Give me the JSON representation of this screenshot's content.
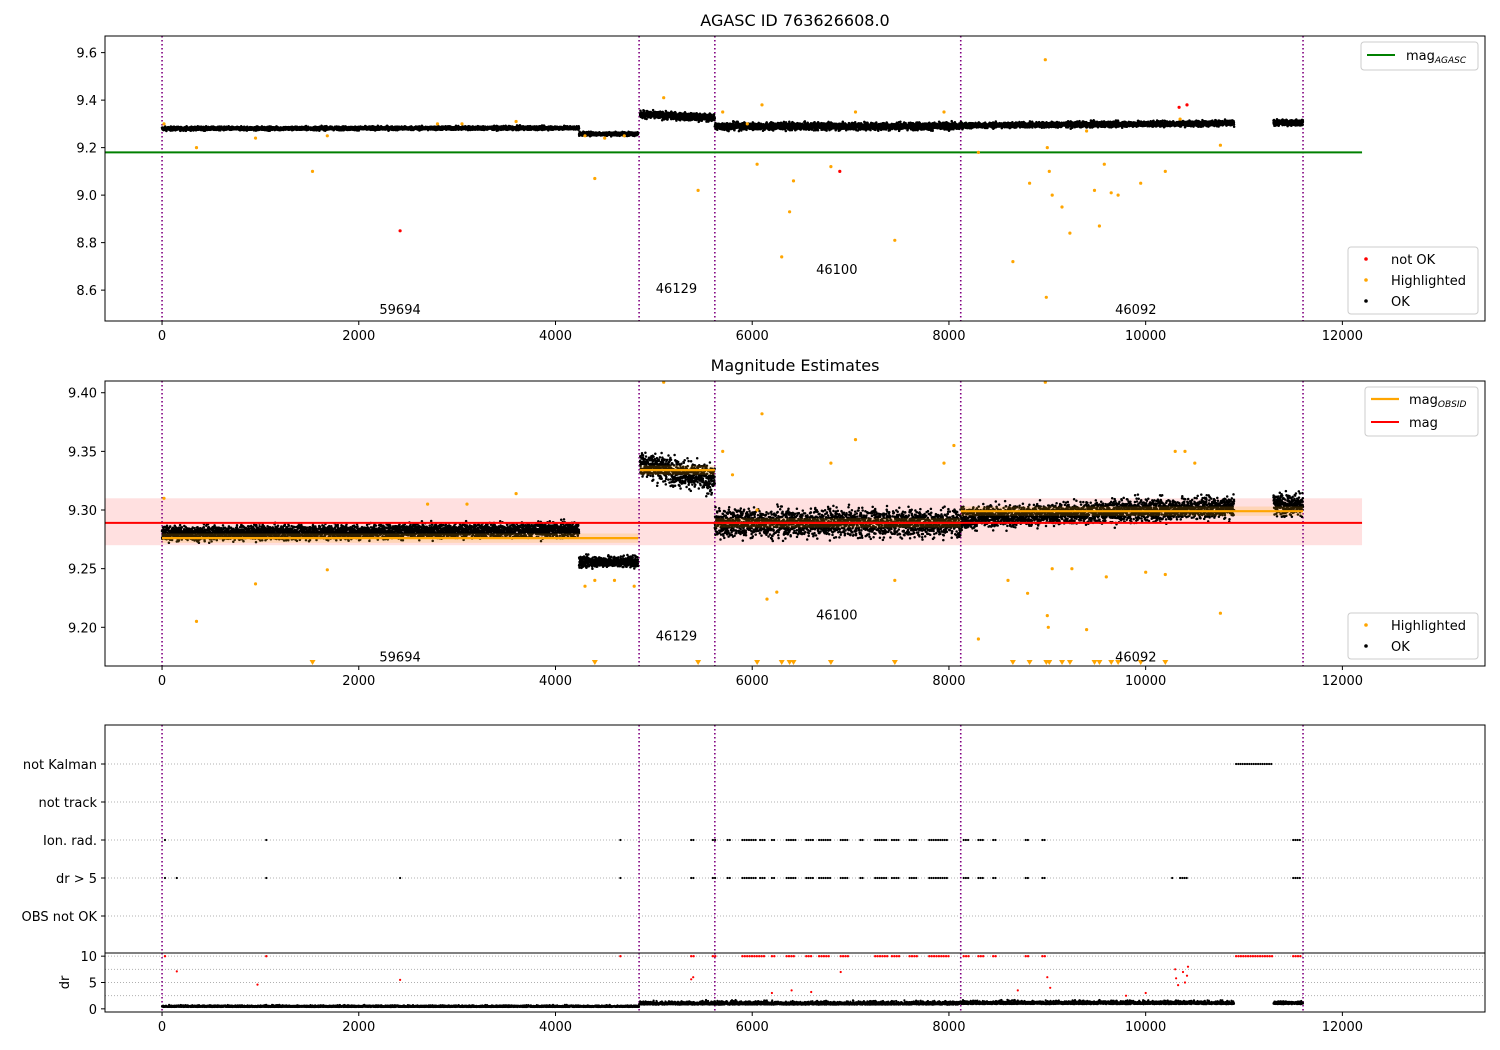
{
  "figure": {
    "title_top": "AGASC ID 763626608.0",
    "title_middle": "Magnitude Estimates"
  },
  "colors": {
    "ok": "#000000",
    "highlighted": "#ffa500",
    "not_ok": "#ff0000",
    "agasc_line": "#008000",
    "mag_line": "#ff0000",
    "mag_obsid": "#ffa500",
    "obs_boundary": "#800080",
    "band": "#ffcccc"
  },
  "chart_data": [
    {
      "type": "scatter",
      "panel": "top",
      "title": "AGASC ID 763626608.0",
      "xlim": [
        -580,
        13450
      ],
      "ylim": [
        8.47,
        9.67
      ],
      "x_ticks": [
        0,
        2000,
        4000,
        6000,
        8000,
        10000,
        12000
      ],
      "y_ticks": [
        8.6,
        8.8,
        9.0,
        9.2,
        9.4,
        9.6
      ],
      "hlines": [
        {
          "name": "mag_AGASC",
          "y": 9.18,
          "x_range": [
            -580,
            12200
          ],
          "color": "#008000"
        }
      ],
      "obs_boundaries": [
        0,
        4850,
        5620,
        8120,
        11600
      ],
      "obs_labels": [
        {
          "text": "59694",
          "x": 2420,
          "y": 8.52
        },
        {
          "text": "46129",
          "x": 5230,
          "y": 8.61
        },
        {
          "text": "46100",
          "x": 6860,
          "y": 8.69
        },
        {
          "text": "46092",
          "x": 9900,
          "y": 8.52
        }
      ],
      "series": [
        {
          "name": "OK",
          "segments": [
            {
              "x": [
                0,
                4240
              ],
              "y_start": 9.28,
              "y_end": 9.283,
              "noise": 0.01
            },
            {
              "x": [
                4240,
                4840
              ],
              "y_start": 9.258,
              "y_end": 9.258,
              "noise": 0.01
            },
            {
              "x": [
                4860,
                5620
              ],
              "y_start": 9.34,
              "y_end": 9.325,
              "noise": 0.02
            },
            {
              "x": [
                5620,
                8120
              ],
              "y_start": 9.29,
              "y_end": 9.29,
              "noise": 0.02
            },
            {
              "x": [
                8120,
                10900
              ],
              "y_start": 9.293,
              "y_end": 9.303,
              "noise": 0.015
            },
            {
              "x": [
                11300,
                11600
              ],
              "y_start": 9.305,
              "y_end": 9.305,
              "noise": 0.015
            }
          ]
        },
        {
          "name": "Highlighted",
          "points": [
            [
              20,
              9.3
            ],
            [
              350,
              9.2
            ],
            [
              950,
              9.24
            ],
            [
              1530,
              9.1
            ],
            [
              1680,
              9.25
            ],
            [
              2800,
              9.3
            ],
            [
              3050,
              9.3
            ],
            [
              3600,
              9.31
            ],
            [
              4300,
              9.25
            ],
            [
              4400,
              9.07
            ],
            [
              4500,
              9.24
            ],
            [
              4700,
              9.25
            ],
            [
              5100,
              9.41
            ],
            [
              5450,
              9.02
            ],
            [
              5700,
              9.35
            ],
            [
              5950,
              9.3
            ],
            [
              6050,
              9.13
            ],
            [
              6100,
              9.38
            ],
            [
              6300,
              8.74
            ],
            [
              6380,
              8.93
            ],
            [
              6420,
              9.06
            ],
            [
              6800,
              9.12
            ],
            [
              7050,
              9.35
            ],
            [
              7450,
              8.81
            ],
            [
              7950,
              9.35
            ],
            [
              8300,
              9.18
            ],
            [
              8650,
              8.72
            ],
            [
              8820,
              9.05
            ],
            [
              8980,
              9.57
            ],
            [
              8990,
              8.57
            ],
            [
              9000,
              9.2
            ],
            [
              9020,
              9.1
            ],
            [
              9050,
              9.0
            ],
            [
              9150,
              8.95
            ],
            [
              9230,
              8.84
            ],
            [
              9400,
              9.27
            ],
            [
              9480,
              9.02
            ],
            [
              9530,
              8.87
            ],
            [
              9580,
              9.13
            ],
            [
              9650,
              9.01
            ],
            [
              9720,
              9.0
            ],
            [
              9950,
              9.05
            ],
            [
              10200,
              9.1
            ],
            [
              10350,
              9.32
            ],
            [
              10760,
              9.21
            ]
          ]
        },
        {
          "name": "not OK",
          "points": [
            [
              2420,
              8.85
            ],
            [
              6890,
              9.1
            ],
            [
              10340,
              9.37
            ],
            [
              10420,
              9.38
            ]
          ]
        }
      ],
      "legend_upper": [
        "mag_AGASC"
      ],
      "legend_lower": [
        "not OK",
        "Highlighted",
        "OK"
      ],
      "legend_placement": "upper right / lower right"
    },
    {
      "type": "scatter",
      "panel": "middle",
      "title": "Magnitude Estimates",
      "xlim": [
        -580,
        13450
      ],
      "ylim": [
        9.167,
        9.41
      ],
      "x_ticks": [
        0,
        2000,
        4000,
        6000,
        8000,
        10000,
        12000
      ],
      "y_ticks": [
        9.2,
        9.25,
        9.3,
        9.35,
        9.4
      ],
      "band": {
        "y": [
          9.27,
          9.31
        ],
        "x_range": [
          -580,
          12200
        ]
      },
      "hlines": [
        {
          "name": "mag",
          "y": 9.289,
          "x_range": [
            -580,
            12200
          ],
          "color": "#ff0000"
        }
      ],
      "obsid_mags": [
        {
          "x": [
            0,
            4240
          ],
          "y": 9.276
        },
        {
          "x": [
            4240,
            4840
          ],
          "y": 9.276
        },
        {
          "x": [
            4860,
            5620
          ],
          "y": 9.334
        },
        {
          "x": [
            5620,
            8120
          ],
          "y": 9.289
        },
        {
          "x": [
            8120,
            11600
          ],
          "y": 9.299
        }
      ],
      "obs_boundaries": [
        0,
        4850,
        5620,
        8120,
        11600
      ],
      "obs_labels": [
        {
          "text": "59694",
          "x": 2420,
          "y": 9.175
        },
        {
          "text": "46129",
          "x": 5230,
          "y": 9.193
        },
        {
          "text": "46100",
          "x": 6860,
          "y": 9.211
        },
        {
          "text": "46092",
          "x": 9900,
          "y": 9.175
        }
      ],
      "series": [
        {
          "name": "OK",
          "segments": [
            {
              "x": [
                0,
                4240
              ],
              "y_start": 9.28,
              "y_end": 9.283,
              "noise": 0.008
            },
            {
              "x": [
                4240,
                4840
              ],
              "y_start": 9.256,
              "y_end": 9.256,
              "noise": 0.006
            },
            {
              "x": [
                4860,
                5620
              ],
              "y_start": 9.34,
              "y_end": 9.325,
              "noise": 0.015
            },
            {
              "x": [
                5620,
                8120
              ],
              "y_start": 9.289,
              "y_end": 9.289,
              "noise": 0.015
            },
            {
              "x": [
                8120,
                10900
              ],
              "y_start": 9.293,
              "y_end": 9.303,
              "noise": 0.012
            },
            {
              "x": [
                11300,
                11600
              ],
              "y_start": 9.305,
              "y_end": 9.305,
              "noise": 0.012
            }
          ]
        },
        {
          "name": "Highlighted",
          "points": [
            [
              20,
              9.31
            ],
            [
              350,
              9.205
            ],
            [
              950,
              9.237
            ],
            [
              1680,
              9.249
            ],
            [
              2700,
              9.305
            ],
            [
              3100,
              9.305
            ],
            [
              3600,
              9.314
            ],
            [
              4300,
              9.235
            ],
            [
              4400,
              9.24
            ],
            [
              4600,
              9.24
            ],
            [
              4800,
              9.235
            ],
            [
              5100,
              9.41
            ],
            [
              5700,
              9.35
            ],
            [
              5800,
              9.33
            ],
            [
              6050,
              9.3
            ],
            [
              6100,
              9.382
            ],
            [
              6150,
              9.224
            ],
            [
              6250,
              9.23
            ],
            [
              6800,
              9.34
            ],
            [
              7050,
              9.36
            ],
            [
              7450,
              9.24
            ],
            [
              7950,
              9.34
            ],
            [
              8050,
              9.355
            ],
            [
              8300,
              9.19
            ],
            [
              8600,
              9.24
            ],
            [
              8800,
              9.229
            ],
            [
              8980,
              9.41
            ],
            [
              9000,
              9.21
            ],
            [
              9010,
              9.2
            ],
            [
              9050,
              9.25
            ],
            [
              9250,
              9.25
            ],
            [
              9400,
              9.198
            ],
            [
              9600,
              9.243
            ],
            [
              10000,
              9.247
            ],
            [
              10200,
              9.245
            ],
            [
              10300,
              9.35
            ],
            [
              10400,
              9.35
            ],
            [
              10500,
              9.34
            ],
            [
              10760,
              9.212
            ]
          ]
        },
        {
          "name": "Below range",
          "x": [
            1530,
            4400,
            5450,
            6050,
            6300,
            6380,
            6420,
            6800,
            7450,
            8650,
            8820,
            8990,
            9020,
            9150,
            9230,
            9480,
            9530,
            9650,
            9720,
            9950,
            10200
          ]
        }
      ],
      "legend_upper": [
        "mag_OBSID",
        "mag"
      ],
      "legend_lower": [
        "Highlighted",
        "OK"
      ],
      "legend_placement": "upper right / lower right"
    },
    {
      "type": "scatter",
      "panel": "flags",
      "categories": [
        "OBS not OK",
        "dr > 5",
        "Ion. rad.",
        "not track",
        "not Kalman"
      ],
      "flags": {
        "not Kalman": [
          [
            10920,
            11300
          ]
        ],
        "not track": [],
        "Ion. rad.": [
          [
            30,
            30
          ],
          [
            1060,
            1060
          ],
          [
            4660,
            4660
          ],
          [
            5380,
            5420
          ],
          [
            5600,
            5630
          ],
          [
            5750,
            5780
          ],
          [
            5900,
            6050
          ],
          [
            6080,
            6140
          ],
          [
            6200,
            6230
          ],
          [
            6350,
            6440
          ],
          [
            6550,
            6620
          ],
          [
            6680,
            6800
          ],
          [
            6900,
            6980
          ],
          [
            7100,
            7140
          ],
          [
            7250,
            7380
          ],
          [
            7420,
            7500
          ],
          [
            7600,
            7680
          ],
          [
            7800,
            8000
          ],
          [
            8150,
            8200
          ],
          [
            8300,
            8360
          ],
          [
            8450,
            8480
          ],
          [
            8780,
            8820
          ],
          [
            8950,
            8990
          ],
          [
            11500,
            11580
          ]
        ],
        "dr > 5": [
          [
            30,
            30
          ],
          [
            150,
            150
          ],
          [
            1060,
            1060
          ],
          [
            2420,
            2420
          ],
          [
            4660,
            4660
          ],
          [
            5380,
            5420
          ],
          [
            5600,
            5630
          ],
          [
            5750,
            5780
          ],
          [
            5900,
            6050
          ],
          [
            6080,
            6140
          ],
          [
            6200,
            6230
          ],
          [
            6350,
            6440
          ],
          [
            6550,
            6620
          ],
          [
            6680,
            6800
          ],
          [
            6900,
            6980
          ],
          [
            7100,
            7140
          ],
          [
            7250,
            7380
          ],
          [
            7420,
            7500
          ],
          [
            7600,
            7680
          ],
          [
            7800,
            8000
          ],
          [
            8150,
            8200
          ],
          [
            8300,
            8360
          ],
          [
            8450,
            8480
          ],
          [
            8780,
            8820
          ],
          [
            8950,
            8990
          ],
          [
            10270,
            10280
          ],
          [
            10350,
            10420
          ],
          [
            11500,
            11580
          ]
        ],
        "OBS not OK": []
      }
    },
    {
      "type": "scatter",
      "panel": "dr",
      "ylabel": "dr",
      "xlim": [
        -580,
        13450
      ],
      "ylim": [
        -0.6,
        10.6
      ],
      "x_ticks": [
        0,
        2000,
        4000,
        6000,
        8000,
        10000,
        12000
      ],
      "y_ticks": [
        0,
        5,
        10
      ],
      "baseline_segments": [
        {
          "x": [
            0,
            4850
          ],
          "level": 0.35,
          "noise": 0.3
        },
        {
          "x": [
            4850,
            8120
          ],
          "level": 0.8,
          "noise": 0.6
        },
        {
          "x": [
            8120,
            10900
          ],
          "level": 0.9,
          "noise": 0.6
        },
        {
          "x": [
            11300,
            11600
          ],
          "level": 0.9,
          "noise": 0.5
        }
      ],
      "clipped_red": [
        [
          30,
          30
        ],
        [
          1060,
          1060
        ],
        [
          4660,
          4660
        ],
        [
          5380,
          5420
        ],
        [
          5600,
          5630
        ],
        [
          5900,
          6140
        ],
        [
          6200,
          6230
        ],
        [
          6350,
          6440
        ],
        [
          6550,
          6620
        ],
        [
          6680,
          6800
        ],
        [
          6900,
          6980
        ],
        [
          7250,
          7380
        ],
        [
          7420,
          7500
        ],
        [
          7600,
          7680
        ],
        [
          7800,
          8000
        ],
        [
          8150,
          8200
        ],
        [
          8300,
          8360
        ],
        [
          8450,
          8480
        ],
        [
          8780,
          8820
        ],
        [
          8950,
          8990
        ],
        [
          10920,
          11300
        ],
        [
          11500,
          11580
        ]
      ],
      "red_points": [
        [
          150,
          7.1
        ],
        [
          970,
          4.6
        ],
        [
          2420,
          5.5
        ],
        [
          5380,
          5.6
        ],
        [
          5400,
          6.0
        ],
        [
          6600,
          3.2
        ],
        [
          6900,
          7.0
        ],
        [
          6200,
          3.0
        ],
        [
          6400,
          3.5
        ],
        [
          9000,
          6.0
        ],
        [
          9030,
          4.0
        ],
        [
          10300,
          7.5
        ],
        [
          10310,
          5.8
        ],
        [
          10330,
          4.5
        ],
        [
          10380,
          7.0
        ],
        [
          10400,
          5.0
        ],
        [
          10420,
          6.3
        ],
        [
          10430,
          8.0
        ],
        [
          10000,
          3.0
        ],
        [
          9800,
          2.5
        ],
        [
          8700,
          3.5
        ]
      ]
    }
  ]
}
